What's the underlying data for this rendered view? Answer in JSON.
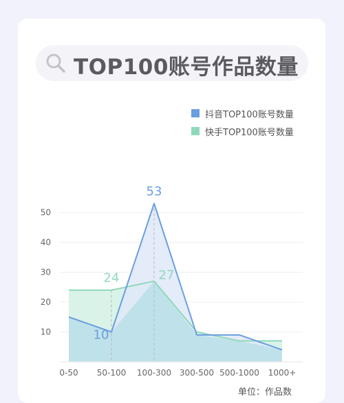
{
  "title": "TOP100账号作品数量",
  "unit_label": "单位：作品数",
  "colors": {
    "douyin": "#6a9ee0",
    "kuaishou": "#8fd9bb",
    "douyin_fill": "#dfe7f8",
    "kuaishou_fill": "#d3f1e4",
    "overlap_fill": "#bfe1ea"
  },
  "chart_data": {
    "type": "area",
    "title": "TOP100账号作品数量",
    "categories": [
      "0-50",
      "50-100",
      "100-300",
      "300-500",
      "500-1000",
      "1000+"
    ],
    "yticks": [
      10,
      20,
      30,
      40,
      50
    ],
    "ylim": [
      0,
      55
    ],
    "legend_position": "top-right",
    "grid": true,
    "series": [
      {
        "name": "抖音TOP100账号数量",
        "values": [
          15,
          10,
          53,
          9,
          9,
          4
        ],
        "label_indices": [
          1,
          2
        ]
      },
      {
        "name": "快手TOP100账号数量",
        "values": [
          24,
          24,
          27,
          10,
          7,
          7
        ],
        "label_indices": [
          1,
          2
        ]
      }
    ]
  }
}
